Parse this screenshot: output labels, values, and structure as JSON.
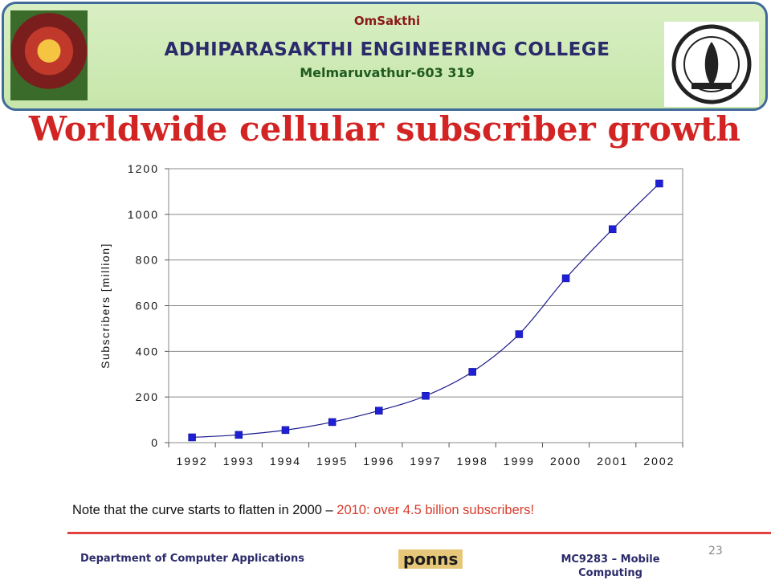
{
  "header": {
    "top_line": "OmSakthi",
    "college": "ADHIPARASAKTHI ENGINEERING COLLEGE",
    "place": "Melmaruvathur-603 319"
  },
  "slide": {
    "title": "Worldwide cellular subscriber growth",
    "note_prefix": "Note that the curve starts to flatten in 2000 – ",
    "note_highlight": "2010: over 4.5 billion subscribers!",
    "page_number": "23"
  },
  "footer": {
    "department": "Department of Computer Applications",
    "brand": "ponns",
    "course": "MC9283 – Mobile Computing"
  },
  "chart_data": {
    "type": "line",
    "categories": [
      "1992",
      "1993",
      "1994",
      "1995",
      "1996",
      "1997",
      "1998",
      "1999",
      "2000",
      "2001",
      "2002"
    ],
    "series": [
      {
        "values": [
          23,
          34,
          55,
          90,
          140,
          205,
          310,
          475,
          720,
          935,
          1135
        ],
        "color": "#1f1fd6"
      }
    ],
    "xlabel": "",
    "ylabel": "Subscribers [million]",
    "ylim": [
      0,
      1200
    ],
    "yticks": [
      "0",
      "200",
      "400",
      "600",
      "800",
      "1000",
      "1200"
    ],
    "grid": true,
    "legend": false
  }
}
